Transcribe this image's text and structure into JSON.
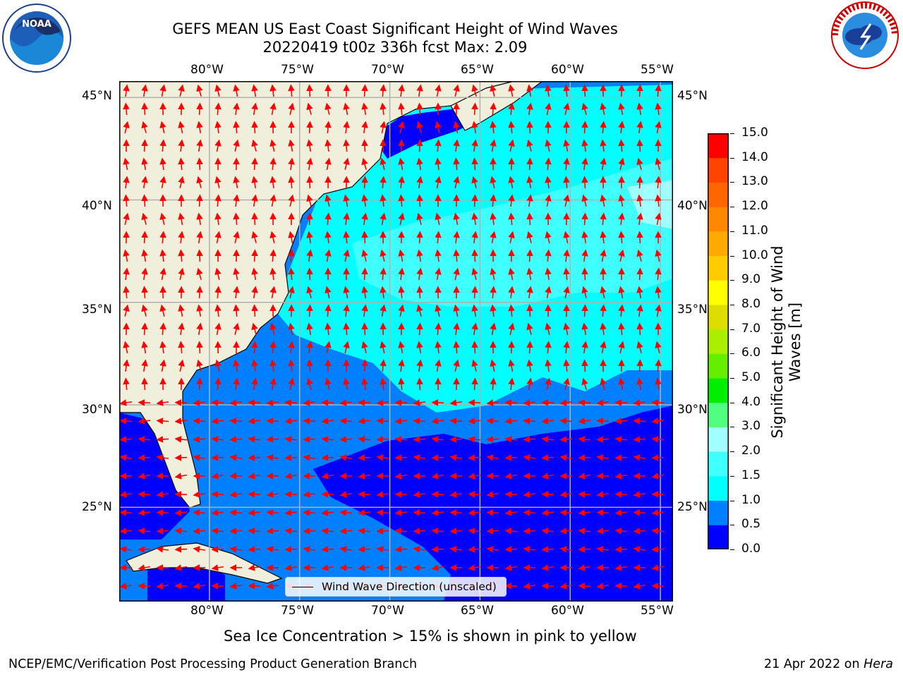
{
  "title": {
    "line1": "GEFS MEAN US East Coast Significant Height of Wind Waves",
    "line2": "20220419 t00z 336h fcst   Max: 2.09"
  },
  "axes": {
    "lon_top": [
      "80°W",
      "75°W",
      "70°W",
      "65°W",
      "60°W",
      "55°W"
    ],
    "lon_bottom": [
      "80°W",
      "75°W",
      "70°W",
      "65°W",
      "60°W",
      "55°W"
    ],
    "lat_left": [
      "45°N",
      "40°N",
      "35°N",
      "30°N",
      "25°N"
    ],
    "lat_right": [
      "45°N",
      "40°N",
      "35°N",
      "30°N",
      "25°N"
    ]
  },
  "colorbar": {
    "label": "Significant Height of Wind Waves [m]",
    "label_line1": "Significant Height of Wind",
    "label_line2": "Waves [m]",
    "ticks": [
      "15.0",
      "14.0",
      "13.0",
      "12.0",
      "11.0",
      "10.0",
      "9.0",
      "8.0",
      "7.0",
      "6.0",
      "5.0",
      "4.0",
      "3.0",
      "2.0",
      "1.5",
      "1.0",
      "0.5",
      "0.0"
    ],
    "colors": [
      "#0000ff",
      "#0080ff",
      "#00ffff",
      "#40ffff",
      "#a0ffff",
      "#50ff80",
      "#00ee00",
      "#66ee00",
      "#aaee00",
      "#dddd00",
      "#ffff00",
      "#ffcc00",
      "#ffaa00",
      "#ff8800",
      "#ff6600",
      "#ff4400",
      "#ff0000"
    ],
    "values": [
      0.0,
      0.5,
      1.0,
      1.5,
      2.0,
      3.0,
      4.0,
      5.0,
      6.0,
      7.0,
      8.0,
      9.0,
      10.0,
      11.0,
      12.0,
      13.0,
      14.0,
      15.0
    ]
  },
  "map": {
    "lon_range": [
      -85,
      -54.3
    ],
    "lat_range": [
      20.4,
      45.8
    ],
    "land_color": "#efefdb",
    "grid": true,
    "vector_color": "#ff0000"
  },
  "legend": {
    "entry": "Wind Wave Direction (unscaled)"
  },
  "note": "Sea Ice Concentration > 15% is shown in pink to yellow",
  "footer": {
    "left": "NCEP/EMC/Verification Post Processing Product Generation Branch",
    "date": "21 Apr 2022 on ",
    "machine": "Hera"
  },
  "logos": {
    "left_icon": "noaa-logo-icon",
    "left_text": "NOAA",
    "right_icon": "nws-logo-icon"
  }
}
